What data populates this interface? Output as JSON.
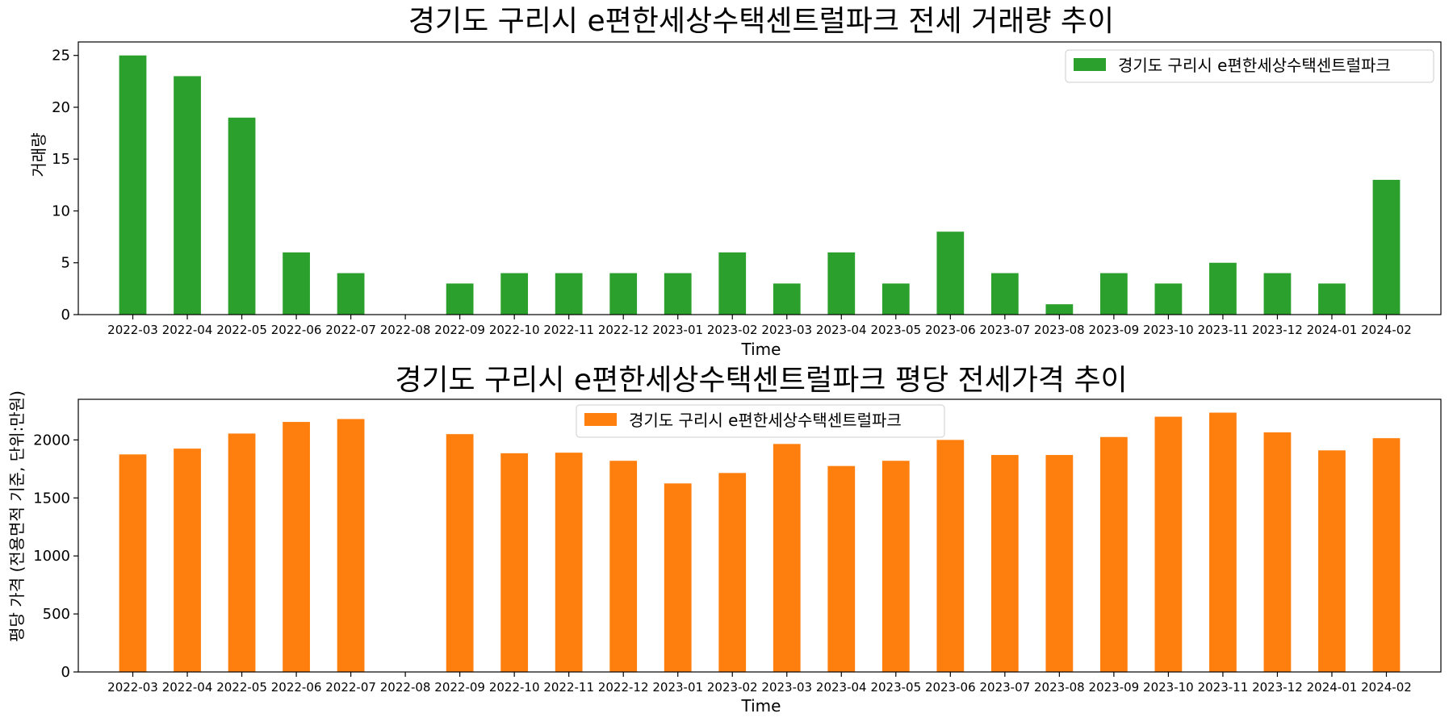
{
  "colors": {
    "green": "#2ca02c",
    "orange": "#ff7f0e"
  },
  "chart_data": [
    {
      "type": "bar",
      "title": "경기도 구리시 e편한세상수택센트럴파크 전세 거래량 추이",
      "xlabel": "Time",
      "ylabel": "거래량",
      "legend": "경기도 구리시 e편한세상수택센트럴파크",
      "legend_position": "top-right",
      "color": "#2ca02c",
      "ylim": [
        0,
        26.3
      ],
      "yticks": [
        0,
        5,
        10,
        15,
        20,
        25
      ],
      "categories": [
        "2022-03",
        "2022-04",
        "2022-05",
        "2022-06",
        "2022-07",
        "2022-08",
        "2022-09",
        "2022-10",
        "2022-11",
        "2022-12",
        "2023-01",
        "2023-02",
        "2023-03",
        "2023-04",
        "2023-05",
        "2023-06",
        "2023-07",
        "2023-08",
        "2023-09",
        "2023-10",
        "2023-11",
        "2023-12",
        "2024-01",
        "2024-02"
      ],
      "values": [
        25,
        23,
        19,
        6,
        4,
        0,
        3,
        4,
        4,
        4,
        4,
        6,
        3,
        6,
        3,
        8,
        4,
        1,
        4,
        3,
        5,
        4,
        3,
        13
      ]
    },
    {
      "type": "bar",
      "title": "경기도 구리시 e편한세상수택센트럴파크 평당 전세가격 추이",
      "xlabel": "Time",
      "ylabel": "평당 가격 (전용면적 기준, 단위:만원)",
      "legend": "경기도 구리시 e편한세상수택센트럴파크",
      "legend_position": "upper-center",
      "color": "#ff7f0e",
      "ylim": [
        0,
        2350
      ],
      "yticks": [
        0,
        500,
        1000,
        1500,
        2000
      ],
      "categories": [
        "2022-03",
        "2022-04",
        "2022-05",
        "2022-06",
        "2022-07",
        "2022-08",
        "2022-09",
        "2022-10",
        "2022-11",
        "2022-12",
        "2023-01",
        "2023-02",
        "2023-03",
        "2023-04",
        "2023-05",
        "2023-06",
        "2023-07",
        "2023-08",
        "2023-09",
        "2023-10",
        "2023-11",
        "2023-12",
        "2024-01",
        "2024-02"
      ],
      "values": [
        1875,
        1925,
        2055,
        2155,
        2180,
        0,
        2050,
        1885,
        1890,
        1820,
        1625,
        1715,
        1965,
        1775,
        1820,
        2000,
        1870,
        1870,
        2025,
        2200,
        2235,
        2065,
        1910,
        2015
      ]
    }
  ]
}
